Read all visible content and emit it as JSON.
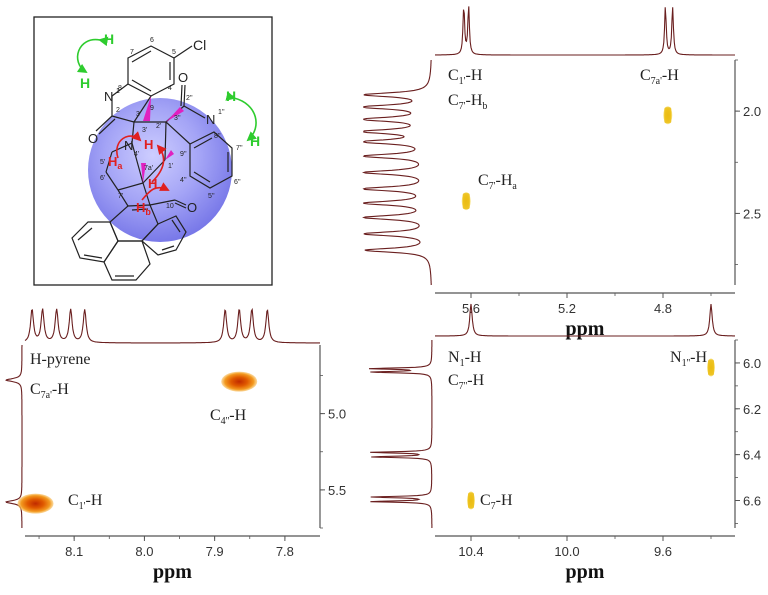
{
  "colors": {
    "trace": "#6a1f1f",
    "axis": "#555555",
    "peak_outer": "#f07800",
    "peak_inner": "#c83000",
    "peak_yellow": "#f2cc1a",
    "sphere": "#8080f0",
    "h_green": "#2ecc2e",
    "arrow_red": "#e02020",
    "bond_magenta": "#e020c0"
  },
  "molecule": {
    "atom_labels": [
      "Cl",
      "H",
      "H",
      "H",
      "H",
      "H",
      "H",
      "H",
      "N",
      "N",
      "O",
      "O",
      "O"
    ],
    "locants": [
      "7",
      "6",
      "5",
      "4",
      "8",
      "9",
      "1",
      "2",
      "3",
      "3'",
      "4'",
      "5'",
      "6'",
      "7'",
      "7a'",
      "1'",
      "2'",
      "2''",
      "3''",
      "1''",
      "8''",
      "7''",
      "6''",
      "5''",
      "4''",
      "9''",
      "10"
    ],
    "h_sub_a": "a",
    "h_sub_b": "b"
  },
  "chart_data": [
    {
      "type": "heatmap",
      "panel": "top-right",
      "xlabel": "ppm",
      "x_ticks": [
        5.6,
        5.2,
        4.8
      ],
      "xlim": [
        5.75,
        4.5
      ],
      "y_ticks": [
        2.0,
        2.5
      ],
      "ylim": [
        1.75,
        2.85
      ],
      "labels": [
        {
          "main": "C",
          "sub": "1'",
          "tail": "-H"
        },
        {
          "main": "C",
          "sub": "7a'",
          "tail": "-H"
        },
        {
          "main": "C",
          "sub": "7'",
          "tail": "-H",
          "sub2": "b"
        },
        {
          "main": "C",
          "sub": "7'",
          "tail": "-H",
          "sub2": "a"
        }
      ],
      "cross_peaks": [
        {
          "x": 4.78,
          "y": 2.02,
          "color": "yellow"
        },
        {
          "x": 5.62,
          "y": 2.44,
          "color": "yellow"
        }
      ],
      "top_projection_peaks": [
        5.63,
        5.61,
        4.79,
        4.76
      ],
      "left_projection_peaks": [
        1.92,
        1.98,
        2.04,
        2.1,
        2.15,
        2.22,
        2.3,
        2.38,
        2.45,
        2.52,
        2.6,
        2.68
      ]
    },
    {
      "type": "heatmap",
      "panel": "bottom-left",
      "xlabel": "ppm",
      "x_ticks": [
        8.1,
        8.0,
        7.9,
        7.8
      ],
      "xlim": [
        8.17,
        7.75
      ],
      "y_ticks": [
        5.0,
        5.5
      ],
      "ylim": [
        4.55,
        5.75
      ],
      "labels": [
        {
          "main": "H-pyrene"
        },
        {
          "main": "C",
          "sub": "7a'",
          "tail": "-H"
        },
        {
          "main": "C",
          "sub": "4''",
          "tail": "-H"
        },
        {
          "main": "C",
          "sub": "1'",
          "tail": "-H"
        }
      ],
      "cross_peaks": [
        {
          "x": 7.865,
          "y": 4.79,
          "color": "orange"
        },
        {
          "x": 8.155,
          "y": 5.59,
          "color": "orange"
        }
      ],
      "top_projection_peaks": [
        8.16,
        8.145,
        8.125,
        8.105,
        8.085,
        7.885,
        7.865,
        7.847,
        7.825
      ],
      "left_projection_peaks": [
        4.78,
        5.58
      ]
    },
    {
      "type": "heatmap",
      "panel": "bottom-right",
      "xlabel": "ppm",
      "x_ticks": [
        10.4,
        10.0,
        9.6
      ],
      "xlim": [
        10.55,
        9.3
      ],
      "y_ticks": [
        6.0,
        6.2,
        6.4,
        6.6
      ],
      "ylim": [
        5.9,
        6.72
      ],
      "labels": [
        {
          "main": "N",
          "sub": "1",
          "tail": "-H"
        },
        {
          "main": "N",
          "sub": "1''",
          "tail": "-H"
        },
        {
          "main": "C",
          "sub": "7''",
          "tail": "-H"
        },
        {
          "main": "C",
          "sub": "7",
          "tail": "-H"
        }
      ],
      "cross_peaks": [
        {
          "x": 9.4,
          "y": 6.02,
          "color": "yellow"
        },
        {
          "x": 10.4,
          "y": 6.6,
          "color": "yellow"
        }
      ],
      "top_projection_peaks": [
        10.4,
        9.4
      ],
      "left_projection_peaks": [
        6.025,
        6.04,
        6.39,
        6.41,
        6.585,
        6.605
      ]
    }
  ]
}
